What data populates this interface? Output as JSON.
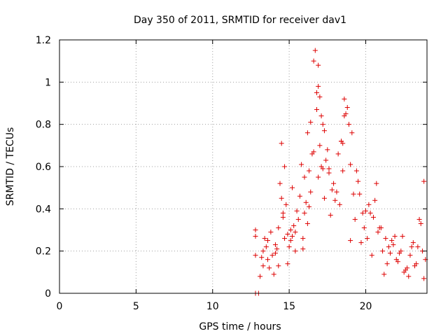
{
  "chart_data": {
    "type": "scatter",
    "title": "Day 350 of 2011, SRMTID for receiver dav1",
    "xlabel": "GPS time / hours",
    "ylabel": "SRMTID / TECUs",
    "xlim": [
      0,
      24
    ],
    "ylim": [
      0,
      1.2
    ],
    "xticks": [
      0,
      5,
      10,
      15,
      20
    ],
    "xtick_labels": [
      "0",
      "5",
      "10",
      "15",
      "20"
    ],
    "yticks": [
      0,
      0.2,
      0.4,
      0.6,
      0.8,
      1.0,
      1.2
    ],
    "ytick_labels": [
      "0",
      "0.2",
      "0.4",
      "0.6",
      "0.8",
      "1",
      "1.2"
    ],
    "grid": true,
    "marker": "+",
    "color": "#dd0000",
    "series": [
      {
        "name": "dav1",
        "x": [
          12.8,
          12.8,
          12.8,
          12.8,
          13.0,
          13.2,
          13.5,
          13.3,
          13.6,
          13.9,
          14.2,
          14.6,
          14.0,
          14.3,
          14.8,
          14.1,
          14.5,
          14.9,
          15.1,
          15.3,
          15.2,
          15.6,
          15.9,
          15.4,
          15.8,
          16.1,
          16.3,
          16.0,
          16.5,
          15.2,
          13.7,
          14.7,
          16.2,
          16.7,
          16.6,
          16.8,
          17.2,
          17.0,
          16.9,
          16.4,
          17.3,
          17.5,
          17.6,
          17.9,
          18.2,
          18.5,
          18.8,
          19.1,
          18.3,
          18.9,
          19.3,
          19.6,
          19.9,
          20.2,
          20.5,
          20.8,
          19.7,
          20.1,
          20.4,
          21.1,
          21.4,
          21.7,
          22.0,
          22.3,
          22.6,
          22.9,
          23.2,
          23.5,
          23.8,
          23.9,
          21.2,
          21.6,
          22.1,
          22.7,
          23.0,
          23.3,
          23.7,
          16.9,
          16.9,
          17.0,
          16.8,
          17.1,
          17.3,
          18.6,
          18.7,
          18.6,
          14.4,
          14.6,
          14.5,
          15.5,
          15.7,
          16.0,
          17.8,
          18.0,
          17.6,
          19.5,
          19.0,
          20.6,
          20.0,
          21.0,
          21.8,
          22.4,
          23.6,
          23.4,
          22.8,
          20.3,
          15.0,
          14.9,
          16.3,
          17.4,
          18.4,
          19.2,
          13.1,
          13.3,
          13.4,
          13.6,
          13.8,
          14.1,
          14.3,
          14.7,
          15.1,
          15.4,
          15.9,
          16.2,
          16.6,
          17.1,
          17.7,
          18.1,
          18.5,
          19.4,
          19.8,
          20.7,
          21.3,
          21.5,
          22.2,
          22.5,
          23.1,
          23.8,
          21.9,
          20.9,
          19.0,
          18.4,
          17.2,
          16.4
        ],
        "y": [
          0.0,
          0.27,
          0.18,
          0.3,
          0.0,
          0.17,
          0.22,
          0.13,
          0.25,
          0.18,
          0.21,
          0.38,
          0.09,
          0.31,
          0.42,
          0.19,
          0.71,
          0.28,
          0.25,
          0.32,
          0.27,
          0.35,
          0.21,
          0.29,
          0.61,
          0.43,
          0.58,
          0.38,
          0.66,
          0.5,
          0.12,
          0.6,
          0.76,
          1.15,
          1.1,
          0.95,
          0.8,
          0.7,
          0.55,
          0.48,
          0.45,
          0.68,
          0.59,
          0.52,
          0.66,
          0.58,
          0.88,
          0.76,
          0.42,
          0.8,
          0.35,
          0.47,
          0.31,
          0.42,
          0.36,
          0.29,
          0.24,
          0.26,
          0.18,
          0.2,
          0.14,
          0.25,
          0.16,
          0.2,
          0.11,
          0.18,
          0.13,
          0.35,
          0.07,
          0.16,
          0.09,
          0.19,
          0.15,
          0.12,
          0.22,
          0.14,
          0.2,
          1.08,
          0.98,
          0.93,
          0.87,
          0.84,
          0.77,
          0.92,
          0.85,
          0.84,
          0.52,
          0.36,
          0.45,
          0.39,
          0.46,
          0.55,
          0.49,
          0.44,
          0.57,
          0.53,
          0.61,
          0.44,
          0.39,
          0.31,
          0.23,
          0.27,
          0.33,
          0.22,
          0.08,
          0.38,
          0.22,
          0.14,
          0.41,
          0.63,
          0.72,
          0.47,
          0.08,
          0.2,
          0.26,
          0.16,
          0.29,
          0.23,
          0.13,
          0.26,
          0.3,
          0.2,
          0.26,
          0.33,
          0.67,
          0.6,
          0.37,
          0.48,
          0.71,
          0.58,
          0.38,
          0.52,
          0.26,
          0.22,
          0.19,
          0.1,
          0.24,
          0.53,
          0.27,
          0.31,
          0.25,
          0.72,
          0.59,
          0.81
        ]
      }
    ]
  }
}
